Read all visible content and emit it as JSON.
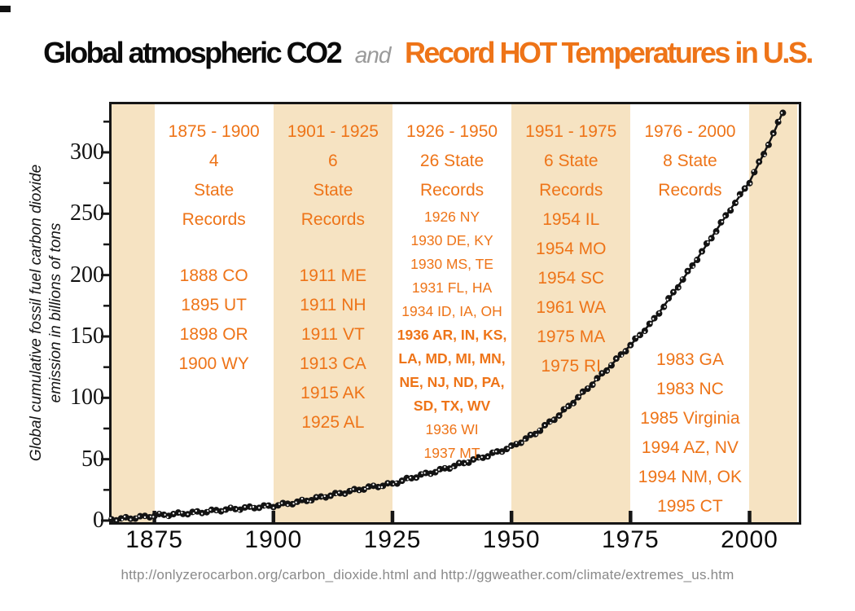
{
  "slide": {
    "title": {
      "part_black": "Global atmospheric CO2",
      "part_connector": "and",
      "part_orange": "Record HOT Temperatures in U.S."
    },
    "footer": "http://onlyzerocarbon.org/carbon_dioxide.html and http://ggweather.com/climate/extremes_us.htm"
  },
  "colors": {
    "orange": "#EE7418",
    "beige": "#F6E3C2",
    "title_gray": "#9A9A9A",
    "footer_gray": "#8A8A8A",
    "curve_black": "#131313"
  },
  "y_axis": {
    "title_line1": "Global cumulative fossil fuel carbon dioxide",
    "title_line2": "emission in billions of tons",
    "major_ticks": [
      300,
      250,
      200,
      150,
      100,
      50,
      0
    ],
    "minor_ticks": [
      325,
      275,
      225,
      175,
      125,
      75,
      25
    ]
  },
  "x_axis": {
    "ticks": [
      1875,
      1900,
      1925,
      1950,
      1975,
      2000
    ]
  },
  "columns": [
    {
      "era": [
        1875,
        1900
      ],
      "lines": [
        {
          "t": "1875 - 1900",
          "s": "lg"
        },
        {
          "t": "4",
          "s": "lg"
        },
        {
          "t": "State",
          "s": "lg"
        },
        {
          "t": "Records",
          "s": "lg"
        },
        {
          "gap": 33
        },
        {
          "t": "1888 CO",
          "s": "lg"
        },
        {
          "t": "1895 UT",
          "s": "lg"
        },
        {
          "t": "1898 OR",
          "s": "lg"
        },
        {
          "t": "1900 WY",
          "s": "lg"
        }
      ]
    },
    {
      "era": [
        1900,
        1925
      ],
      "lines": [
        {
          "t": "1901 - 1925",
          "s": "lg"
        },
        {
          "t": "6",
          "s": "lg"
        },
        {
          "t": "State",
          "s": "lg"
        },
        {
          "t": "Records",
          "s": "lg"
        },
        {
          "gap": 33
        },
        {
          "t": "1911 ME",
          "s": "lg"
        },
        {
          "t": "1911 NH",
          "s": "lg"
        },
        {
          "t": "1911 VT",
          "s": "lg"
        },
        {
          "t": "1913 CA",
          "s": "lg"
        },
        {
          "t": "1915 AK",
          "s": "lg"
        },
        {
          "t": "1925 AL",
          "s": "lg"
        }
      ]
    },
    {
      "era": [
        1925,
        1950
      ],
      "lines": [
        {
          "t": "1926 - 1950",
          "s": "lg"
        },
        {
          "t": "26 State",
          "s": "lg"
        },
        {
          "t": "Records",
          "s": "lg"
        },
        {
          "t": "1926 NY",
          "s": "sm"
        },
        {
          "t": "1930 DE, KY",
          "s": "sm"
        },
        {
          "t": "1930 MS, TE",
          "s": "sm"
        },
        {
          "t": "1931 FL, HA",
          "s": "sm"
        },
        {
          "t": "1934 ID, IA, OH",
          "s": "sm"
        },
        {
          "t": "1936 AR, IN, KS,",
          "s": "smb"
        },
        {
          "t": "LA, MD, MI, MN,",
          "s": "smb"
        },
        {
          "t": "NE, NJ, ND, PA,",
          "s": "smb"
        },
        {
          "t": "SD, TX, WV",
          "s": "smb"
        },
        {
          "t": "1936 WI",
          "s": "sm"
        },
        {
          "t": "1937 MT",
          "s": "sm"
        }
      ]
    },
    {
      "era": [
        1950,
        1975
      ],
      "lines": [
        {
          "t": "1951 - 1975",
          "s": "lg"
        },
        {
          "t": "6 State",
          "s": "lg"
        },
        {
          "t": "Records",
          "s": "lg"
        },
        {
          "t": "1954 IL",
          "s": "lg"
        },
        {
          "t": "1954 MO",
          "s": "lg"
        },
        {
          "t": "1954 SC",
          "s": "lg"
        },
        {
          "t": "1961 WA",
          "s": "lg"
        },
        {
          "t": "1975 MA",
          "s": "lg"
        },
        {
          "t": "1975 RI",
          "s": "lg"
        }
      ]
    },
    {
      "era": [
        1975,
        2000
      ],
      "lines": [
        {
          "t": "1976 - 2000",
          "s": "lg"
        },
        {
          "t": "8 State",
          "s": "lg"
        },
        {
          "t": "Records",
          "s": "lg"
        },
        {
          "gap": 172
        },
        {
          "t": "1983 GA",
          "s": "lg"
        },
        {
          "t": "1983 NC",
          "s": "lg"
        },
        {
          "t": "1985 Virginia",
          "s": "lg"
        },
        {
          "t": "1994 AZ, NV",
          "s": "lg"
        },
        {
          "t": "1994 NM, OK",
          "s": "lg"
        },
        {
          "t": "1995 CT",
          "s": "lg"
        }
      ]
    }
  ],
  "chart_data": {
    "type": "scatter",
    "title": "Global atmospheric CO2 and Record HOT Temperatures in U.S.",
    "xlabel": "",
    "ylabel": "Global cumulative fossil fuel carbon dioxide emission in billions of tons",
    "x_range": [
      1866,
      2010
    ],
    "y_range": [
      0,
      340
    ],
    "grid": false,
    "legend": "none",
    "series": [
      {
        "name": "Cumulative fossil fuel CO2 emissions (billions of tons)",
        "marker": "open-circle-chain",
        "points": [
          [
            1866,
            1
          ],
          [
            1870,
            2
          ],
          [
            1875,
            4
          ],
          [
            1880,
            5.5
          ],
          [
            1885,
            7
          ],
          [
            1890,
            9
          ],
          [
            1895,
            10.5
          ],
          [
            1900,
            12
          ],
          [
            1905,
            15
          ],
          [
            1910,
            19
          ],
          [
            1915,
            23
          ],
          [
            1920,
            27
          ],
          [
            1925,
            30
          ],
          [
            1930,
            36
          ],
          [
            1935,
            41
          ],
          [
            1940,
            47
          ],
          [
            1945,
            53
          ],
          [
            1950,
            60
          ],
          [
            1955,
            71
          ],
          [
            1960,
            86
          ],
          [
            1965,
            104
          ],
          [
            1970,
            123
          ],
          [
            1975,
            143
          ],
          [
            1980,
            164
          ],
          [
            1985,
            191
          ],
          [
            1990,
            219
          ],
          [
            1995,
            248
          ],
          [
            2000,
            276
          ],
          [
            2003,
            299
          ],
          [
            2005,
            315
          ],
          [
            2007,
            333
          ]
        ]
      }
    ],
    "bands": [
      {
        "from": 1866,
        "to": 1875,
        "shade": "beige"
      },
      {
        "from": 1875,
        "to": 1900,
        "shade": "white"
      },
      {
        "from": 1900,
        "to": 1925,
        "shade": "beige"
      },
      {
        "from": 1925,
        "to": 1950,
        "shade": "white"
      },
      {
        "from": 1950,
        "to": 1975,
        "shade": "beige"
      },
      {
        "from": 1975,
        "to": 2000,
        "shade": "white"
      },
      {
        "from": 2000,
        "to": 2010,
        "shade": "beige"
      }
    ]
  }
}
